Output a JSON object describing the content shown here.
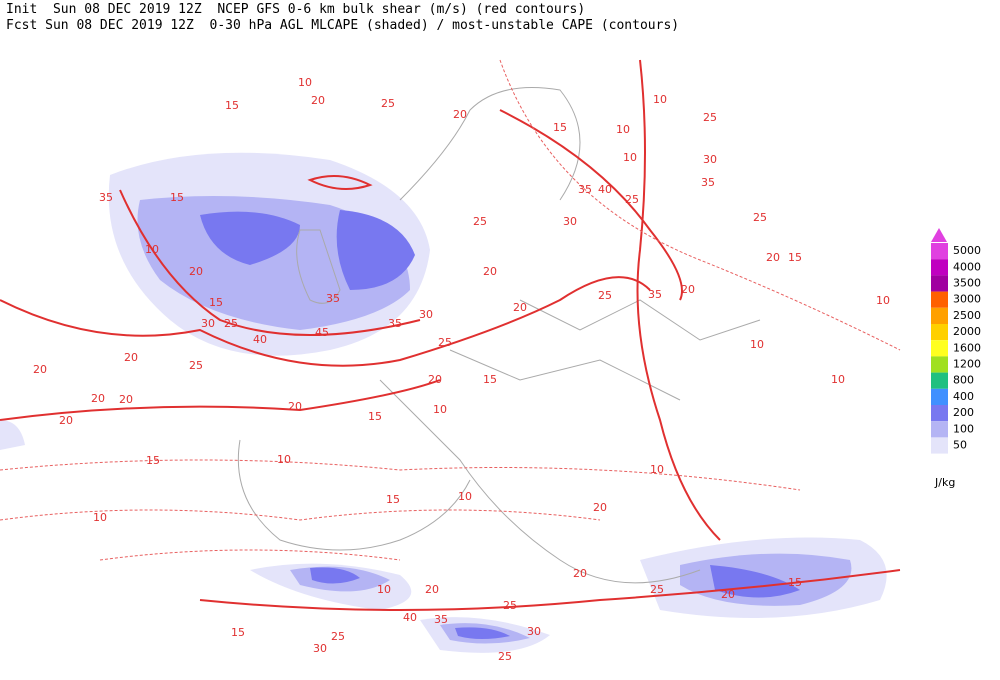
{
  "header": {
    "line1": "Init  Sun 08 DEC 2019 12Z  NCEP GFS 0-6 km bulk shear (m/s) (red contours)",
    "line2": "Fcst Sun 08 DEC 2019 12Z  0-30 hPa AGL MLCAPE (shaded) / most-unstable CAPE (contours)"
  },
  "colorbar": {
    "levels": [
      5000,
      4000,
      3500,
      3000,
      2500,
      2000,
      1600,
      1200,
      800,
      400,
      200,
      100,
      50
    ],
    "colors": [
      "#e040e0",
      "#c000c0",
      "#a000a0",
      "#ff6000",
      "#ffa000",
      "#ffd000",
      "#ffff20",
      "#a0e020",
      "#20c080",
      "#4090ff",
      "#7878f0",
      "#b4b4f4",
      "#e4e4fa"
    ],
    "unit": "J/kg"
  },
  "contour_labels": [
    10,
    15,
    20,
    25,
    20,
    15,
    10,
    10,
    25,
    30,
    35,
    25,
    10,
    35,
    40,
    25,
    30,
    25,
    20,
    25,
    35,
    20,
    20,
    15,
    10,
    10,
    10,
    20,
    25,
    20,
    15,
    10,
    15,
    20,
    20,
    20,
    20,
    20,
    20,
    25,
    10,
    20,
    35,
    15,
    15,
    30,
    25,
    40,
    45,
    35,
    35,
    30,
    15,
    10,
    10,
    15,
    10,
    20,
    20,
    10,
    20,
    15,
    25,
    10,
    20,
    40,
    35,
    30,
    25,
    30,
    15,
    25,
    25
  ]
}
